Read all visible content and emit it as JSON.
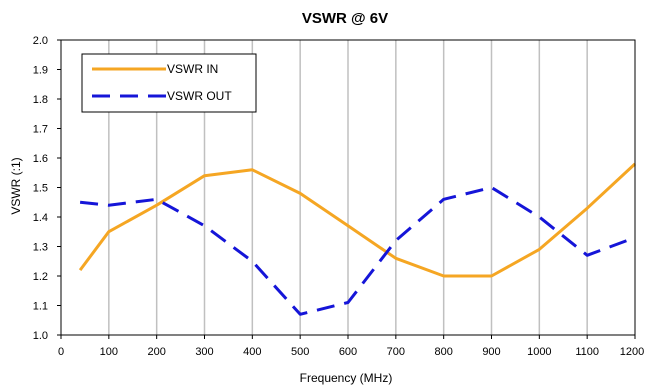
{
  "chart_data": {
    "type": "line",
    "title": "VSWR @ 6V",
    "xlabel": "Frequency (MHz)",
    "ylabel": "VSWR (:1)",
    "xlim": [
      0,
      1200
    ],
    "ylim": [
      1.0,
      2.0
    ],
    "x_ticks": [
      0,
      100,
      200,
      300,
      400,
      500,
      600,
      700,
      800,
      900,
      1000,
      1100,
      1200
    ],
    "x_tick_labels": [
      "0",
      "100",
      "200",
      "300",
      "400",
      "500",
      "600",
      "700",
      "800",
      "900",
      "1000",
      "1100",
      "1200"
    ],
    "y_ticks": [
      1.0,
      1.1,
      1.2,
      1.3,
      1.4,
      1.5,
      1.6,
      1.7,
      1.8,
      1.9,
      2.0
    ],
    "y_tick_labels": [
      "1.0",
      "1.1",
      "1.2",
      "1.3",
      "1.4",
      "1.5",
      "1.6",
      "1.7",
      "1.8",
      "1.9",
      "2.0"
    ],
    "grid": "vertical",
    "legend_position": "top-left",
    "series": [
      {
        "name": "VSWR IN",
        "color": "#F5A623",
        "style": "solid",
        "x": [
          40,
          100,
          200,
          300,
          400,
          500,
          600,
          700,
          800,
          900,
          1000,
          1100,
          1200
        ],
        "y": [
          1.22,
          1.35,
          1.44,
          1.54,
          1.56,
          1.48,
          1.37,
          1.26,
          1.2,
          1.2,
          1.29,
          1.43,
          1.58
        ]
      },
      {
        "name": "VSWR OUT",
        "color": "#1515D8",
        "style": "dashed",
        "x": [
          40,
          100,
          200,
          300,
          400,
          500,
          600,
          700,
          800,
          900,
          1000,
          1100,
          1200
        ],
        "y": [
          1.45,
          1.44,
          1.46,
          1.37,
          1.25,
          1.07,
          1.11,
          1.32,
          1.46,
          1.5,
          1.4,
          1.27,
          1.33
        ]
      }
    ]
  }
}
